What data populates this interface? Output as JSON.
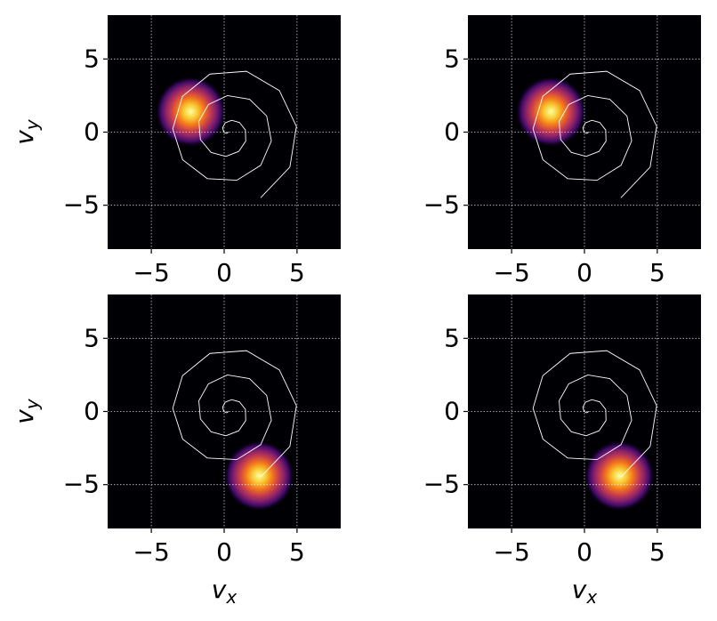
{
  "chart_data": [
    {
      "type": "density",
      "peak": {
        "x": -2.3,
        "y": 1.4
      },
      "curve": {
        "color": "#ffffff",
        "x": [
          0.3,
          0.16,
          -0.03,
          -0.11,
          0.07,
          0.51,
          1.05,
          1.46,
          1.48,
          1.0,
          0.11,
          -0.9,
          -1.63,
          -1.74,
          -1.08,
          0.23,
          1.74,
          2.92,
          3.24,
          2.51,
          0.87,
          -1.16,
          -2.85,
          -3.53,
          -2.86,
          -0.98,
          1.53,
          3.79,
          4.96,
          4.51,
          2.5
        ],
        "y": [
          0,
          -0.09,
          0.01,
          0.29,
          0.63,
          0.81,
          0.66,
          0.14,
          -0.62,
          -1.32,
          -1.66,
          -1.39,
          -0.51,
          0.73,
          1.89,
          2.5,
          2.25,
          1.1,
          -0.6,
          -2.27,
          -3.29,
          -3.18,
          -1.89,
          0.22,
          2.45,
          3.97,
          4.16,
          2.84,
          0.39,
          -2.39,
          -4.49
        ]
      },
      "xlim": [
        -8,
        8
      ],
      "ylim": [
        -8,
        8
      ],
      "xticks": [
        {
          "value": -5,
          "label": "−5"
        },
        0,
        5
      ],
      "yticks": [
        {
          "value": -5,
          "label": "−5"
        },
        0,
        5
      ],
      "grid": true,
      "ylabel": {
        "symbol": "v",
        "subscript": "y"
      }
    },
    {
      "type": "density",
      "peak": {
        "x": -2.3,
        "y": 1.4
      },
      "curve": {
        "color": "#ffffff",
        "x": [
          0.3,
          0.16,
          -0.03,
          -0.11,
          0.07,
          0.51,
          1.05,
          1.46,
          1.48,
          1.0,
          0.11,
          -0.9,
          -1.63,
          -1.74,
          -1.08,
          0.23,
          1.74,
          2.92,
          3.24,
          2.51,
          0.87,
          -1.16,
          -2.85,
          -3.53,
          -2.86,
          -0.98,
          1.53,
          3.79,
          4.96,
          4.51,
          2.5
        ],
        "y": [
          0,
          -0.09,
          0.01,
          0.29,
          0.63,
          0.81,
          0.66,
          0.14,
          -0.62,
          -1.32,
          -1.66,
          -1.39,
          -0.51,
          0.73,
          1.89,
          2.5,
          2.25,
          1.1,
          -0.6,
          -2.27,
          -3.29,
          -3.18,
          -1.89,
          0.22,
          2.45,
          3.97,
          4.16,
          2.84,
          0.39,
          -2.39,
          -4.49
        ]
      },
      "xlim": [
        -8,
        8
      ],
      "ylim": [
        -8,
        8
      ],
      "xticks": [
        {
          "value": -5,
          "label": "−5"
        },
        0,
        5
      ],
      "yticks": [
        {
          "value": -5,
          "label": "−5"
        },
        0,
        5
      ],
      "grid": true
    },
    {
      "type": "density",
      "peak": {
        "x": 2.4,
        "y": -4.4
      },
      "curve": {
        "color": "#ffffff",
        "x": [
          0.3,
          0.16,
          -0.03,
          -0.11,
          0.07,
          0.51,
          1.05,
          1.46,
          1.48,
          1.0,
          0.11,
          -0.9,
          -1.63,
          -1.74,
          -1.08,
          0.23,
          1.74,
          2.92,
          3.24,
          2.51,
          0.87,
          -1.16,
          -2.85,
          -3.53,
          -2.86,
          -0.98,
          1.53,
          3.79,
          4.96,
          4.51,
          2.5
        ],
        "y": [
          0,
          -0.09,
          0.01,
          0.29,
          0.63,
          0.81,
          0.66,
          0.14,
          -0.62,
          -1.32,
          -1.66,
          -1.39,
          -0.51,
          0.73,
          1.89,
          2.5,
          2.25,
          1.1,
          -0.6,
          -2.27,
          -3.29,
          -3.18,
          -1.89,
          0.22,
          2.45,
          3.97,
          4.16,
          2.84,
          0.39,
          -2.39,
          -4.49
        ]
      },
      "xlim": [
        -8,
        8
      ],
      "ylim": [
        -8,
        8
      ],
      "xticks": [
        {
          "value": -5,
          "label": "−5"
        },
        0,
        5
      ],
      "yticks": [
        {
          "value": -5,
          "label": "−5"
        },
        0,
        5
      ],
      "grid": true,
      "xlabel": {
        "symbol": "v",
        "subscript": "x"
      },
      "ylabel": {
        "symbol": "v",
        "subscript": "y"
      }
    },
    {
      "type": "density",
      "peak": {
        "x": 2.4,
        "y": -4.4
      },
      "curve": {
        "color": "#ffffff",
        "x": [
          0.3,
          0.16,
          -0.03,
          -0.11,
          0.07,
          0.51,
          1.05,
          1.46,
          1.48,
          1.0,
          0.11,
          -0.9,
          -1.63,
          -1.74,
          -1.08,
          0.23,
          1.74,
          2.92,
          3.24,
          2.51,
          0.87,
          -1.16,
          -2.85,
          -3.53,
          -2.86,
          -0.98,
          1.53,
          3.79,
          4.96,
          4.51,
          2.5
        ],
        "y": [
          0,
          -0.09,
          0.01,
          0.29,
          0.63,
          0.81,
          0.66,
          0.14,
          -0.62,
          -1.32,
          -1.66,
          -1.39,
          -0.51,
          0.73,
          1.89,
          2.5,
          2.25,
          1.1,
          -0.6,
          -2.27,
          -3.29,
          -3.18,
          -1.89,
          0.22,
          2.45,
          3.97,
          4.16,
          2.84,
          0.39,
          -2.39,
          -4.49
        ]
      },
      "xlim": [
        -8,
        8
      ],
      "ylim": [
        -8,
        8
      ],
      "xticks": [
        {
          "value": -5,
          "label": "−5"
        },
        0,
        5
      ],
      "yticks": [
        {
          "value": -5,
          "label": "−5"
        },
        0,
        5
      ],
      "grid": true,
      "xlabel": {
        "symbol": "v",
        "subscript": "x"
      }
    }
  ]
}
